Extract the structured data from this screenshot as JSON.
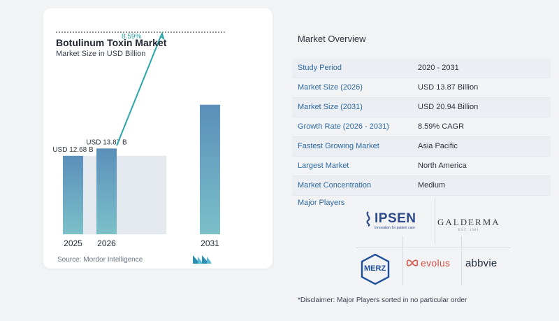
{
  "chart_card": {
    "title": "Botulinum Toxin Market",
    "subtitle": "Market Size in USD Billion",
    "source": "Source:  Mordor Intelligence",
    "cagr_label": "8.59%"
  },
  "chart_data": {
    "type": "bar",
    "title": "Botulinum Toxin Market",
    "subtitle": "Market Size in USD Billion",
    "categories": [
      "2025",
      "2026",
      "2031"
    ],
    "values": [
      12.68,
      13.87,
      20.94
    ],
    "data_labels": [
      "USD 12.68 B",
      "USD 13.87 B",
      ""
    ],
    "annotation": "8.59%",
    "ylim": [
      0,
      26
    ],
    "grid": false,
    "colors": {
      "bar_top": "#5b8fba",
      "bar_bottom": "#7cc0c9",
      "band": "#e3e9ef",
      "line": "#2aa6a8"
    }
  },
  "overview": {
    "title": "Market Overview",
    "rows": [
      {
        "label": "Study Period",
        "value": "2020 - 2031"
      },
      {
        "label": "Market Size (2026)",
        "value": "USD 13.87 Billion"
      },
      {
        "label": "Market Size (2031)",
        "value": "USD 20.94 Billion"
      },
      {
        "label": "Growth Rate (2026 - 2031)",
        "value": "8.59% CAGR"
      },
      {
        "label": "Fastest Growing Market",
        "value": "Asia Pacific"
      },
      {
        "label": "Largest Market",
        "value": "North America"
      },
      {
        "label": "Market Concentration",
        "value": "Medium"
      }
    ],
    "major_players_title": "Major Players",
    "players": {
      "ipsen": "IPSEN",
      "ipsen_tagline": "Innovation for patient care",
      "galderma": "GALDERMA",
      "galderma_est": "EST. 1981",
      "merz": "MERZ",
      "evolus": "evolus",
      "abbvie": "abbvie"
    },
    "disclaimer": "*Disclaimer: Major Players sorted in no particular order"
  }
}
